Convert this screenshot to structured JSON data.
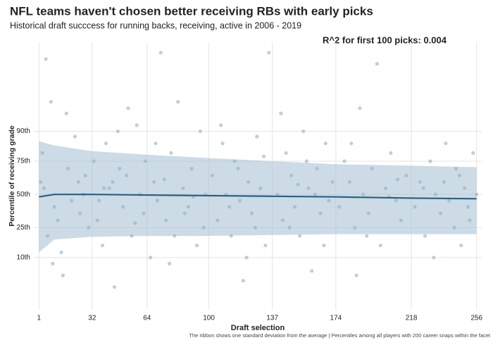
{
  "chart_data": {
    "type": "scatter",
    "title": "NFL teams haven't chosen better receiving RBs with early picks",
    "subtitle": "Historical draft succcess for running backs, receiving, active in 2006 - 2019",
    "annotation": "R^2 for first 100 picks: 0.004",
    "caption": "The ribbon shows one standard deviation from the average | Percentiles among all players with 200 career snaps within the facet",
    "x_label": "Draft selection",
    "y_label": "Percentile of receiving grade",
    "xlim": [
      -2,
      259
    ],
    "xticks": [
      1,
      32,
      64,
      100,
      137,
      174,
      218,
      256
    ],
    "ylim": [
      0.96,
      99.9
    ],
    "yscale": "probit",
    "yticks": [
      {
        "value": 10,
        "label": "10th"
      },
      {
        "value": 25,
        "label": "25th"
      },
      {
        "value": 50,
        "label": "50th"
      },
      {
        "value": 75,
        "label": "75th"
      },
      {
        "value": 90,
        "label": "90th"
      }
    ],
    "grid": true,
    "point_color": "#8fb0c4",
    "line_color": "#2b5f82",
    "ribbon_color": "#aac3d3",
    "x": [
      5,
      8,
      3,
      2,
      4,
      6,
      10,
      12,
      15,
      18,
      20,
      22,
      25,
      28,
      30,
      14,
      9,
      24,
      17,
      27,
      33,
      35,
      38,
      40,
      42,
      45,
      48,
      50,
      52,
      55,
      58,
      60,
      62,
      44,
      36,
      47,
      53,
      57,
      63,
      39,
      66,
      68,
      70,
      72,
      75,
      78,
      80,
      82,
      85,
      88,
      90,
      93,
      95,
      98,
      74,
      86,
      97,
      69,
      91,
      77,
      102,
      105,
      108,
      110,
      113,
      115,
      118,
      120,
      123,
      125,
      128,
      130,
      133,
      135,
      107,
      117,
      127,
      132,
      112,
      122,
      140,
      143,
      145,
      148,
      150,
      153,
      155,
      158,
      160,
      163,
      165,
      168,
      170,
      172,
      147,
      157,
      162,
      167,
      142,
      152,
      176,
      179,
      182,
      185,
      188,
      190,
      193,
      195,
      198,
      200,
      203,
      206,
      209,
      212,
      215,
      183,
      192,
      205,
      210,
      186,
      220,
      223,
      226,
      229,
      232,
      235,
      238,
      240,
      243,
      246,
      249,
      252,
      254,
      256,
      231,
      244,
      237,
      251,
      225,
      247
    ],
    "values": [
      99.7,
      97,
      80,
      60,
      55,
      20,
      40,
      30,
      5,
      70,
      45,
      88,
      35,
      65,
      25,
      12,
      8,
      60,
      95,
      50,
      75,
      30,
      15,
      85,
      55,
      3,
      70,
      40,
      65,
      20,
      92,
      50,
      35,
      60,
      45,
      90,
      96,
      28,
      75,
      55,
      10,
      60,
      45,
      99.8,
      30,
      80,
      20,
      97,
      55,
      40,
      70,
      15,
      90,
      50,
      62,
      35,
      25,
      85,
      48,
      8,
      65,
      30,
      85,
      50,
      20,
      75,
      45,
      4,
      60,
      35,
      88,
      55,
      15,
      99.8,
      92,
      70,
      25,
      78,
      40,
      10,
      50,
      30,
      80,
      65,
      40,
      20,
      90,
      55,
      6,
      70,
      35,
      85,
      45,
      60,
      25,
      75,
      50,
      15,
      95,
      58,
      40,
      75,
      60,
      25,
      96,
      50,
      35,
      70,
      99.6,
      15,
      55,
      80,
      45,
      30,
      65,
      85,
      20,
      48,
      62,
      5,
      40,
      60,
      20,
      75,
      50,
      35,
      85,
      45,
      25,
      65,
      55,
      30,
      80,
      50,
      10,
      70,
      60,
      40,
      55,
      15
    ],
    "smooth": {
      "x": [
        1,
        10,
        32,
        64,
        100,
        137,
        174,
        218,
        256
      ],
      "values": [
        48,
        50,
        50,
        49.5,
        49,
        48.5,
        48,
        47,
        46.5
      ],
      "upper": [
        86,
        84,
        81,
        79,
        77,
        75,
        73,
        72,
        71
      ],
      "lower": [
        12,
        18,
        19.5,
        20,
        20,
        20.5,
        21,
        21,
        21
      ]
    }
  }
}
